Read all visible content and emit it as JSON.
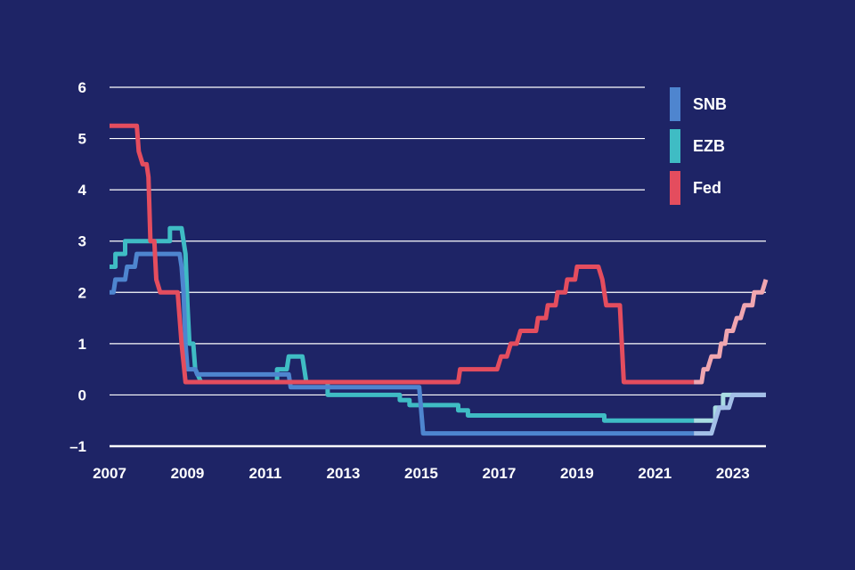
{
  "chart_data": {
    "type": "line",
    "title": "",
    "xlabel": "",
    "ylabel": "",
    "xlim": [
      2007,
      2023.85
    ],
    "ylim": [
      -1,
      6
    ],
    "grid": true,
    "legend_position": "top-right",
    "x_ticks": [
      {
        "value": 2007,
        "label": "2007"
      },
      {
        "value": 2009,
        "label": "2009"
      },
      {
        "value": 2011,
        "label": "2011"
      },
      {
        "value": 2013,
        "label": "2013"
      },
      {
        "value": 2015,
        "label": "2015"
      },
      {
        "value": 2017,
        "label": "2017"
      },
      {
        "value": 2019,
        "label": "2019"
      },
      {
        "value": 2021,
        "label": "2021"
      },
      {
        "value": 2023,
        "label": "2023"
      }
    ],
    "y_ticks": [
      {
        "value": -1,
        "label": "–1"
      },
      {
        "value": 0,
        "label": "0"
      },
      {
        "value": 1,
        "label": "1"
      },
      {
        "value": 2,
        "label": "2"
      },
      {
        "value": 3,
        "label": "3"
      },
      {
        "value": 4,
        "label": "4"
      },
      {
        "value": 5,
        "label": "5"
      },
      {
        "value": 6,
        "label": "6"
      }
    ],
    "forecast_from": 2022.0,
    "series": [
      {
        "name": "EZB",
        "color": "#3fbcc4",
        "light_color": "#a9dde2",
        "points": [
          [
            2007.0,
            2.5
          ],
          [
            2007.15,
            2.5
          ],
          [
            2007.15,
            2.75
          ],
          [
            2007.4,
            2.75
          ],
          [
            2007.4,
            3.0
          ],
          [
            2008.55,
            3.0
          ],
          [
            2008.55,
            3.25
          ],
          [
            2008.85,
            3.25
          ],
          [
            2008.9,
            3.0
          ],
          [
            2008.95,
            2.75
          ],
          [
            2009.0,
            1.75
          ],
          [
            2009.05,
            1.0
          ],
          [
            2009.15,
            1.0
          ],
          [
            2009.2,
            0.5
          ],
          [
            2009.35,
            0.25
          ],
          [
            2011.3,
            0.25
          ],
          [
            2011.3,
            0.5
          ],
          [
            2011.55,
            0.5
          ],
          [
            2011.6,
            0.75
          ],
          [
            2011.95,
            0.75
          ],
          [
            2012.0,
            0.5
          ],
          [
            2012.05,
            0.25
          ],
          [
            2012.6,
            0.25
          ],
          [
            2012.6,
            0.0
          ],
          [
            2014.45,
            0.0
          ],
          [
            2014.45,
            -0.1
          ],
          [
            2014.7,
            -0.1
          ],
          [
            2014.7,
            -0.2
          ],
          [
            2015.95,
            -0.2
          ],
          [
            2015.95,
            -0.3
          ],
          [
            2016.2,
            -0.3
          ],
          [
            2016.2,
            -0.4
          ],
          [
            2019.7,
            -0.4
          ],
          [
            2019.7,
            -0.5
          ],
          [
            2022.55,
            -0.5
          ],
          [
            2022.55,
            -0.25
          ],
          [
            2022.75,
            -0.25
          ],
          [
            2022.75,
            0.0
          ],
          [
            2023.85,
            0.0
          ]
        ]
      },
      {
        "name": "SNB",
        "color": "#4e85cf",
        "light_color": "#a3bfe8",
        "points": [
          [
            2007.0,
            2.0
          ],
          [
            2007.1,
            2.0
          ],
          [
            2007.15,
            2.25
          ],
          [
            2007.4,
            2.25
          ],
          [
            2007.45,
            2.5
          ],
          [
            2007.65,
            2.5
          ],
          [
            2007.7,
            2.75
          ],
          [
            2008.8,
            2.75
          ],
          [
            2008.85,
            2.5
          ],
          [
            2008.9,
            2.0
          ],
          [
            2008.95,
            1.0
          ],
          [
            2009.0,
            0.5
          ],
          [
            2009.2,
            0.5
          ],
          [
            2009.25,
            0.4
          ],
          [
            2011.6,
            0.4
          ],
          [
            2011.65,
            0.15
          ],
          [
            2014.95,
            0.15
          ],
          [
            2015.05,
            -0.75
          ],
          [
            2022.45,
            -0.75
          ],
          [
            2022.55,
            -0.5
          ],
          [
            2022.65,
            -0.25
          ],
          [
            2022.9,
            -0.25
          ],
          [
            2023.0,
            0.0
          ],
          [
            2023.85,
            0.0
          ]
        ]
      },
      {
        "name": "Fed",
        "color": "#e44d5e",
        "light_color": "#f0a6b0",
        "points": [
          [
            2007.0,
            5.25
          ],
          [
            2007.7,
            5.25
          ],
          [
            2007.75,
            4.75
          ],
          [
            2007.85,
            4.5
          ],
          [
            2007.95,
            4.5
          ],
          [
            2008.0,
            4.25
          ],
          [
            2008.05,
            3.0
          ],
          [
            2008.15,
            3.0
          ],
          [
            2008.2,
            2.25
          ],
          [
            2008.3,
            2.0
          ],
          [
            2008.75,
            2.0
          ],
          [
            2008.8,
            1.5
          ],
          [
            2008.85,
            1.0
          ],
          [
            2008.95,
            0.25
          ],
          [
            2015.95,
            0.25
          ],
          [
            2016.0,
            0.5
          ],
          [
            2016.95,
            0.5
          ],
          [
            2017.05,
            0.75
          ],
          [
            2017.2,
            0.75
          ],
          [
            2017.3,
            1.0
          ],
          [
            2017.45,
            1.0
          ],
          [
            2017.55,
            1.25
          ],
          [
            2017.95,
            1.25
          ],
          [
            2018.0,
            1.5
          ],
          [
            2018.2,
            1.5
          ],
          [
            2018.25,
            1.75
          ],
          [
            2018.45,
            1.75
          ],
          [
            2018.5,
            2.0
          ],
          [
            2018.7,
            2.0
          ],
          [
            2018.75,
            2.25
          ],
          [
            2018.95,
            2.25
          ],
          [
            2019.0,
            2.5
          ],
          [
            2019.55,
            2.5
          ],
          [
            2019.65,
            2.25
          ],
          [
            2019.7,
            2.0
          ],
          [
            2019.75,
            1.75
          ],
          [
            2020.1,
            1.75
          ],
          [
            2020.2,
            0.25
          ],
          [
            2022.2,
            0.25
          ],
          [
            2022.25,
            0.5
          ],
          [
            2022.35,
            0.5
          ],
          [
            2022.45,
            0.75
          ],
          [
            2022.65,
            0.75
          ],
          [
            2022.7,
            1.0
          ],
          [
            2022.8,
            1.0
          ],
          [
            2022.85,
            1.25
          ],
          [
            2023.0,
            1.25
          ],
          [
            2023.1,
            1.5
          ],
          [
            2023.2,
            1.5
          ],
          [
            2023.3,
            1.75
          ],
          [
            2023.5,
            1.75
          ],
          [
            2023.55,
            2.0
          ],
          [
            2023.75,
            2.0
          ],
          [
            2023.85,
            2.25
          ]
        ]
      }
    ],
    "legend": [
      {
        "label": "SNB",
        "color": "#4e85cf"
      },
      {
        "label": "EZB",
        "color": "#3fbcc4"
      },
      {
        "label": "Fed",
        "color": "#e44d5e"
      }
    ]
  }
}
